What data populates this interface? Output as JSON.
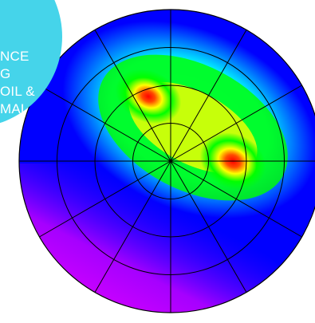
{
  "overlay": {
    "lines": [
      "NCE",
      "G",
      "OIL &",
      "MAL"
    ],
    "background_color": "#45D4EA",
    "text_color": "#FFFFFF"
  },
  "chart_data": {
    "type": "heatmap",
    "title": "",
    "projection": "polar",
    "grid": {
      "rings": 3,
      "spokes": 12
    },
    "color_scale": [
      "#FF00FF",
      "#0000FF",
      "#00FFFF",
      "#00FF00",
      "#FFFF00",
      "#FF0000"
    ],
    "peaks": [
      {
        "label": "",
        "position": "upper-left",
        "intensity": "high"
      },
      {
        "label": "",
        "position": "right",
        "intensity": "high"
      }
    ],
    "low_region": {
      "label": "",
      "position": "lower-left",
      "intensity": "low"
    }
  }
}
